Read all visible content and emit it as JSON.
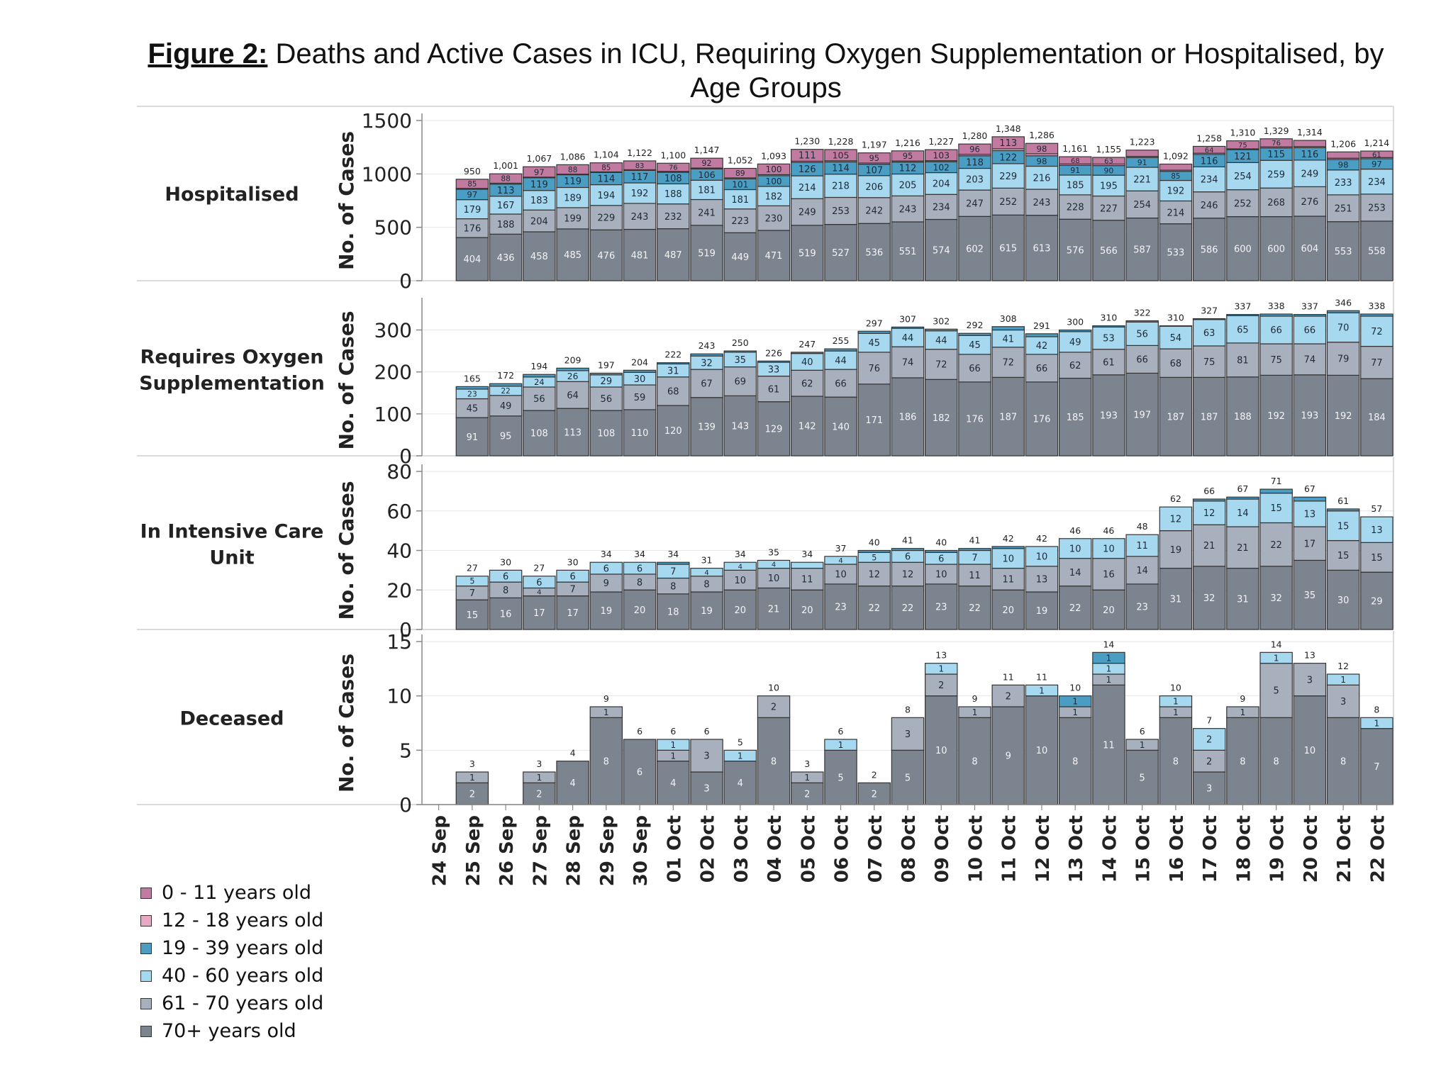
{
  "title": {
    "lead": "Figure 2:",
    "text": "Deaths and Active Cases in ICU, Requiring Oxygen Supplementation or Hospitalised, by Age Groups"
  },
  "legend": [
    {
      "label": "0 - 11 years old",
      "color": "#c27ba0"
    },
    {
      "label": "12 - 18 years old",
      "color": "#e8a9c4"
    },
    {
      "label": "19 - 39 years old",
      "color": "#4a9ec4"
    },
    {
      "label": "40 - 60 years old",
      "color": "#a6d8ef"
    },
    {
      "label": "61 - 70 years old",
      "color": "#a8b0bd"
    },
    {
      "label": "70+ years old",
      "color": "#7c8490"
    }
  ],
  "chart_data": [
    {
      "type": "bar",
      "stacked": true,
      "title": "Hospitalised",
      "ylabel": "No. of Cases",
      "ylim": [
        0,
        1500
      ],
      "yticks": [
        0,
        500,
        1000,
        1500
      ],
      "tick_labels": [
        "0",
        "500",
        "1000",
        "1500"
      ],
      "categories": [
        "24 Sep",
        "25 Sep",
        "26 Sep",
        "27 Sep",
        "28 Sep",
        "29 Sep",
        "30 Sep",
        "01 Oct",
        "02 Oct",
        "03 Oct",
        "04 Oct",
        "05 Oct",
        "06 Oct",
        "07 Oct",
        "08 Oct",
        "09 Oct",
        "10 Oct",
        "11 Oct",
        "12 Oct",
        "13 Oct",
        "14 Oct",
        "15 Oct",
        "16 Oct",
        "17 Oct",
        "18 Oct",
        "19 Oct",
        "20 Oct",
        "21 Oct",
        "22 Oct"
      ],
      "totals": [
        null,
        950,
        1001,
        1067,
        1086,
        1104,
        1122,
        1100,
        1147,
        1052,
        1093,
        1230,
        1228,
        1197,
        1216,
        1227,
        1280,
        1348,
        1286,
        1161,
        1155,
        1223,
        1092,
        1258,
        1310,
        1329,
        1314,
        1206,
        1214
      ],
      "total_labels": [
        "",
        "950",
        "1,001",
        "1,067",
        "1,086",
        "1,104",
        "1,122",
        "1,100",
        "1,147",
        "1,052",
        "1,093",
        "1,230",
        "1,228",
        "1,197",
        "1,216",
        "1,227",
        "1,280",
        "1,348",
        "1,286",
        "1,161",
        "1,155",
        "1,223",
        "1,092",
        "1,258",
        "1,310",
        "1,329",
        "1,314",
        "1,206",
        "1,214"
      ],
      "series": [
        {
          "name": "70+ years old",
          "values": [
            null,
            404,
            436,
            458,
            485,
            476,
            481,
            487,
            519,
            449,
            471,
            519,
            527,
            536,
            551,
            574,
            602,
            615,
            613,
            576,
            566,
            587,
            533,
            586,
            600,
            600,
            604,
            553,
            558
          ]
        },
        {
          "name": "61 - 70 years old",
          "values": [
            null,
            176,
            188,
            204,
            199,
            229,
            243,
            232,
            241,
            223,
            230,
            249,
            253,
            242,
            243,
            234,
            247,
            252,
            243,
            228,
            227,
            254,
            214,
            246,
            252,
            268,
            276,
            251,
            253
          ]
        },
        {
          "name": "40 - 60 years old",
          "values": [
            null,
            179,
            167,
            183,
            189,
            194,
            192,
            188,
            181,
            181,
            182,
            214,
            218,
            206,
            205,
            204,
            203,
            229,
            216,
            185,
            195,
            221,
            192,
            234,
            254,
            259,
            249,
            233,
            234
          ]
        },
        {
          "name": "19 - 39 years old",
          "values": [
            null,
            97,
            113,
            119,
            119,
            114,
            117,
            108,
            106,
            101,
            100,
            126,
            114,
            107,
            112,
            102,
            118,
            122,
            98,
            91,
            90,
            91,
            85,
            116,
            121,
            115,
            116,
            98,
            97
          ]
        },
        {
          "name": "12 - 18 years old",
          "values": [
            null,
            9,
            9,
            6,
            6,
            6,
            6,
            9,
            8,
            9,
            10,
            11,
            11,
            11,
            10,
            10,
            14,
            17,
            18,
            13,
            14,
            11,
            11,
            12,
            8,
            11,
            11,
            12,
            11
          ]
        },
        {
          "name": "0 - 11 years old",
          "values": [
            null,
            85,
            88,
            97,
            88,
            85,
            83,
            76,
            92,
            89,
            100,
            111,
            105,
            95,
            95,
            103,
            96,
            113,
            98,
            68,
            63,
            59,
            57,
            64,
            75,
            76,
            58,
            59,
            61
          ]
        }
      ]
    },
    {
      "type": "bar",
      "stacked": true,
      "title": "Requires Oxygen Supplementation",
      "ylabel": "No. of Cases",
      "ylim": [
        0,
        360
      ],
      "yticks": [
        0,
        100,
        200,
        300
      ],
      "tick_labels": [
        "0",
        "100",
        "200",
        "300"
      ],
      "categories": [
        "24 Sep",
        "25 Sep",
        "26 Sep",
        "27 Sep",
        "28 Sep",
        "29 Sep",
        "30 Sep",
        "01 Oct",
        "02 Oct",
        "03 Oct",
        "04 Oct",
        "05 Oct",
        "06 Oct",
        "07 Oct",
        "08 Oct",
        "09 Oct",
        "10 Oct",
        "11 Oct",
        "12 Oct",
        "13 Oct",
        "14 Oct",
        "15 Oct",
        "16 Oct",
        "17 Oct",
        "18 Oct",
        "19 Oct",
        "20 Oct",
        "21 Oct",
        "22 Oct"
      ],
      "totals": [
        null,
        165,
        172,
        194,
        209,
        197,
        204,
        222,
        243,
        250,
        226,
        247,
        255,
        297,
        307,
        302,
        292,
        308,
        291,
        300,
        310,
        322,
        310,
        327,
        337,
        338,
        337,
        346,
        338
      ],
      "total_labels": [
        "",
        "165",
        "172",
        "194",
        "209",
        "197",
        "204",
        "222",
        "243",
        "250",
        "226",
        "247",
        "255",
        "297",
        "307",
        "302",
        "292",
        "308",
        "291",
        "300",
        "310",
        "322",
        "310",
        "327",
        "337",
        "338",
        "337",
        "346",
        "338"
      ],
      "series": [
        {
          "name": "70+ years old",
          "values": [
            null,
            91,
            95,
            108,
            113,
            108,
            110,
            120,
            139,
            143,
            129,
            142,
            140,
            171,
            186,
            182,
            176,
            187,
            176,
            185,
            193,
            197,
            187,
            187,
            188,
            192,
            193,
            192,
            184
          ]
        },
        {
          "name": "61 - 70 years old",
          "values": [
            null,
            45,
            49,
            56,
            64,
            56,
            59,
            68,
            67,
            69,
            61,
            62,
            66,
            76,
            74,
            72,
            66,
            72,
            66,
            62,
            61,
            66,
            68,
            75,
            81,
            75,
            74,
            79,
            77
          ]
        },
        {
          "name": "40 - 60 years old",
          "values": [
            null,
            23,
            22,
            24,
            26,
            29,
            30,
            31,
            32,
            35,
            33,
            40,
            44,
            45,
            44,
            44,
            45,
            41,
            42,
            49,
            53,
            56,
            54,
            63,
            65,
            66,
            66,
            70,
            72
          ]
        },
        {
          "name": "19 - 39 years old",
          "values": [
            null,
            6,
            6,
            6,
            6,
            4,
            5,
            3,
            5,
            3,
            3,
            3,
            5,
            5,
            3,
            4,
            5,
            8,
            7,
            4,
            3,
            3,
            1,
            2,
            3,
            5,
            4,
            5,
            5
          ]
        }
      ]
    },
    {
      "type": "bar",
      "stacked": true,
      "title": "In Intensive Care Unit",
      "ylabel": "No. of Cases",
      "ylim": [
        0,
        80
      ],
      "yticks": [
        0,
        20,
        40,
        60,
        80
      ],
      "tick_labels": [
        "0",
        "20",
        "40",
        "60",
        "80"
      ],
      "categories": [
        "24 Sep",
        "25 Sep",
        "26 Sep",
        "27 Sep",
        "28 Sep",
        "29 Sep",
        "30 Sep",
        "01 Oct",
        "02 Oct",
        "03 Oct",
        "04 Oct",
        "05 Oct",
        "06 Oct",
        "07 Oct",
        "08 Oct",
        "09 Oct",
        "10 Oct",
        "11 Oct",
        "12 Oct",
        "13 Oct",
        "14 Oct",
        "15 Oct",
        "16 Oct",
        "17 Oct",
        "18 Oct",
        "19 Oct",
        "20 Oct",
        "21 Oct",
        "22 Oct"
      ],
      "totals": [
        null,
        27,
        30,
        27,
        30,
        34,
        34,
        34,
        31,
        34,
        35,
        34,
        37,
        40,
        41,
        40,
        41,
        42,
        42,
        46,
        46,
        48,
        62,
        66,
        67,
        71,
        67,
        61,
        57
      ],
      "total_labels": [
        "",
        "27",
        "30",
        "27",
        "30",
        "34",
        "34",
        "34",
        "31",
        "34",
        "35",
        "34",
        "37",
        "40",
        "41",
        "40",
        "41",
        "42",
        "42",
        "46",
        "46",
        "48",
        "62",
        "66",
        "67",
        "71",
        "67",
        "61",
        "57"
      ],
      "series": [
        {
          "name": "70+ years old",
          "values": [
            null,
            15,
            16,
            17,
            17,
            19,
            20,
            18,
            19,
            20,
            21,
            20,
            23,
            22,
            22,
            23,
            22,
            20,
            19,
            22,
            20,
            23,
            31,
            32,
            31,
            32,
            35,
            30,
            29
          ]
        },
        {
          "name": "61 - 70 years old",
          "values": [
            null,
            7,
            8,
            4,
            7,
            9,
            8,
            8,
            8,
            10,
            10,
            11,
            10,
            12,
            12,
            10,
            11,
            11,
            13,
            14,
            16,
            14,
            19,
            21,
            21,
            22,
            17,
            15,
            15
          ]
        },
        {
          "name": "40 - 60 years old",
          "values": [
            null,
            5,
            6,
            6,
            6,
            6,
            6,
            7,
            4,
            4,
            4,
            3,
            4,
            5,
            6,
            6,
            7,
            10,
            10,
            10,
            10,
            11,
            12,
            12,
            14,
            15,
            13,
            15,
            13
          ]
        },
        {
          "name": "19 - 39 years old",
          "values": [
            null,
            0,
            0,
            0,
            0,
            0,
            0,
            1,
            0,
            0,
            0,
            0,
            0,
            1,
            1,
            1,
            1,
            1,
            0,
            0,
            0,
            0,
            0,
            1,
            1,
            2,
            2,
            1,
            0
          ]
        }
      ]
    },
    {
      "type": "bar",
      "stacked": true,
      "title": "Deceased",
      "ylabel": "No. of Cases",
      "ylim": [
        0,
        15
      ],
      "yticks": [
        0,
        5,
        10,
        15
      ],
      "tick_labels": [
        "0",
        "5",
        "10",
        "15"
      ],
      "categories": [
        "24 Sep",
        "25 Sep",
        "26 Sep",
        "27 Sep",
        "28 Sep",
        "29 Sep",
        "30 Sep",
        "01 Oct",
        "02 Oct",
        "03 Oct",
        "04 Oct",
        "05 Oct",
        "06 Oct",
        "07 Oct",
        "08 Oct",
        "09 Oct",
        "10 Oct",
        "11 Oct",
        "12 Oct",
        "13 Oct",
        "14 Oct",
        "15 Oct",
        "16 Oct",
        "17 Oct",
        "18 Oct",
        "19 Oct",
        "20 Oct",
        "21 Oct",
        "22 Oct"
      ],
      "totals": [
        null,
        3,
        null,
        3,
        4,
        9,
        6,
        6,
        6,
        5,
        10,
        3,
        6,
        2,
        8,
        13,
        9,
        11,
        11,
        10,
        14,
        6,
        10,
        7,
        9,
        14,
        13,
        12,
        8
      ],
      "total_labels": [
        "",
        "3",
        "",
        "3",
        "4",
        "9",
        "6",
        "6",
        "6",
        "5",
        "10",
        "3",
        "6",
        "2",
        "8",
        "13",
        "9",
        "11",
        "11",
        "10",
        "14",
        "6",
        "10",
        "7",
        "9",
        "14",
        "13",
        "12",
        "8"
      ],
      "series": [
        {
          "name": "70+ years old",
          "values": [
            null,
            2,
            null,
            2,
            4,
            8,
            6,
            4,
            3,
            4,
            8,
            2,
            5,
            2,
            5,
            10,
            8,
            9,
            10,
            8,
            11,
            5,
            8,
            3,
            8,
            8,
            10,
            8,
            7
          ]
        },
        {
          "name": "61 - 70 years old",
          "values": [
            null,
            1,
            null,
            1,
            0,
            1,
            0,
            1,
            3,
            0,
            2,
            1,
            0,
            0,
            3,
            2,
            1,
            2,
            0,
            1,
            1,
            1,
            1,
            2,
            1,
            5,
            3,
            3,
            0
          ]
        },
        {
          "name": "40 - 60 years old",
          "values": [
            null,
            0,
            null,
            0,
            0,
            0,
            0,
            1,
            0,
            1,
            0,
            0,
            1,
            0,
            0,
            1,
            0,
            0,
            1,
            0,
            1,
            0,
            1,
            2,
            0,
            1,
            0,
            1,
            1
          ]
        },
        {
          "name": "19 - 39 years old",
          "values": [
            null,
            0,
            null,
            0,
            0,
            0,
            0,
            0,
            0,
            0,
            0,
            0,
            0,
            0,
            0,
            0,
            0,
            0,
            0,
            1,
            1,
            0,
            0,
            0,
            0,
            0,
            0,
            0,
            0
          ]
        }
      ]
    }
  ]
}
